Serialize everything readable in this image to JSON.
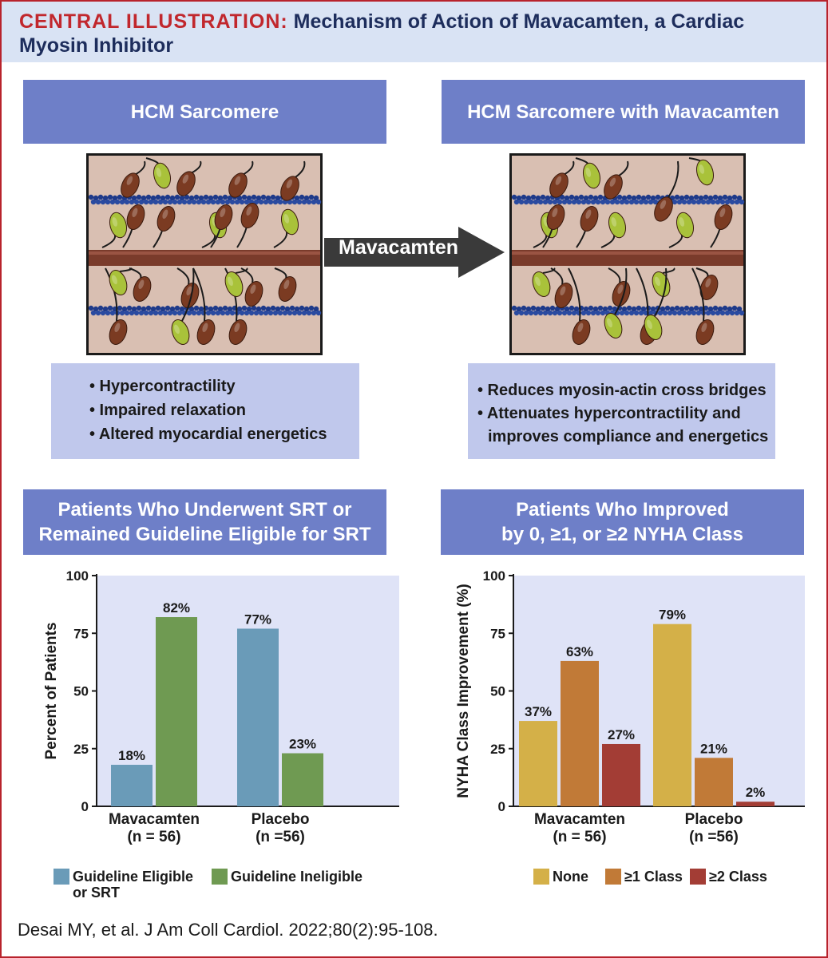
{
  "header": {
    "kicker": "CENTRAL ILLUSTRATION:",
    "title": "Mechanism of Action of Mavacamten, a Cardiac Myosin Inhibitor"
  },
  "panels": {
    "left_top": {
      "title": "HCM Sarcomere",
      "bullets": [
        "• Hypercontractility",
        "• Impaired relaxation",
        "• Altered myocardial energetics"
      ]
    },
    "right_top": {
      "title": "HCM Sarcomere with Mavacamten",
      "bullets": [
        "• Reduces myosin-actin cross bridges",
        "• Attenuates hypercontractility and",
        "improves compliance and energetics"
      ]
    },
    "arrow_label": "Mavacamten",
    "left_bottom": {
      "title_line1": "Patients Who Underwent SRT or",
      "title_line2": "Remained Guideline Eligible for SRT"
    },
    "right_bottom": {
      "title_line1": "Patients Who Improved",
      "title_line2": "by 0, ≥1, or ≥2 NYHA Class"
    }
  },
  "colors": {
    "header_bg": "#d9e3f4",
    "panel_head": "#6e7fc8",
    "bullet_bg": "#c0c8ec",
    "chart_bg": "#dfe3f7",
    "blue": "#6a9bb8",
    "green": "#6f9a52",
    "yellow": "#d4b048",
    "orange": "#c17a37",
    "red": "#a33d35"
  },
  "chart_data": [
    {
      "type": "bar",
      "categories": [
        "Mavacamten\n(n = 56)",
        "Placebo\n(n =56)"
      ],
      "category_lines": [
        [
          "Mavacamten",
          "(n = 56)"
        ],
        [
          "Placebo",
          "(n =56)"
        ]
      ],
      "series": [
        {
          "name": "Guideline Eligible or SRT",
          "legend_lines": [
            "Guideline Eligible",
            "or SRT"
          ],
          "values": [
            18,
            77
          ],
          "labels": [
            "18%",
            "77%"
          ],
          "color": "#6a9bb8"
        },
        {
          "name": "Guideline Ineligible",
          "legend_lines": [
            "Guideline Ineligible"
          ],
          "values": [
            82,
            23
          ],
          "labels": [
            "82%",
            "23%"
          ],
          "color": "#6f9a52"
        }
      ],
      "ylabel": "Percent of Patients",
      "ylim": [
        0,
        100
      ],
      "yticks": [
        "0",
        "25",
        "50",
        "75",
        "100"
      ]
    },
    {
      "type": "bar",
      "categories": [
        "Mavacamten\n(n = 56)",
        "Placebo\n(n =56)"
      ],
      "category_lines": [
        [
          "Mavacamten",
          "(n = 56)"
        ],
        [
          "Placebo",
          "(n =56)"
        ]
      ],
      "series": [
        {
          "name": "None",
          "legend_lines": [
            "None"
          ],
          "values": [
            37,
            79
          ],
          "labels": [
            "37%",
            "79%"
          ],
          "color": "#d4b048"
        },
        {
          "name": "≥1 Class",
          "legend_lines": [
            "≥1 Class"
          ],
          "values": [
            63,
            21
          ],
          "labels": [
            "63%",
            "21%"
          ],
          "color": "#c17a37"
        },
        {
          "name": "≥2 Class",
          "legend_lines": [
            "≥2 Class"
          ],
          "values": [
            27,
            2
          ],
          "labels": [
            "27%",
            "2%"
          ],
          "color": "#a33d35"
        }
      ],
      "ylabel": "NYHA Class Improvement (%)",
      "ylim": [
        0,
        100
      ],
      "yticks": [
        "0",
        "25",
        "50",
        "75",
        "100"
      ]
    }
  ],
  "citation": "Desai MY, et al. J Am Coll Cardiol. 2022;80(2):95-108."
}
